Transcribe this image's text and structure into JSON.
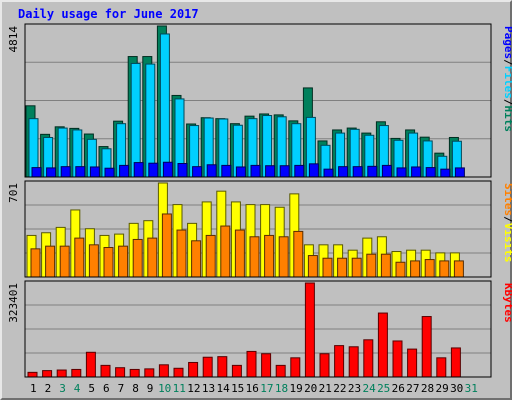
{
  "chart_data": {
    "type": "bar",
    "title": "Daily usage for June 2017",
    "categories": [
      "1",
      "2",
      "3",
      "4",
      "5",
      "6",
      "7",
      "8",
      "9",
      "10",
      "11",
      "12",
      "13",
      "14",
      "15",
      "16",
      "17",
      "18",
      "19",
      "20",
      "21",
      "22",
      "23",
      "24",
      "25",
      "26",
      "27",
      "28",
      "29",
      "30",
      "31"
    ],
    "weekend_days": [
      "3",
      "4",
      "10",
      "11",
      "17",
      "18",
      "24",
      "25",
      "31"
    ],
    "panels": [
      {
        "id": "hits-files-pages",
        "max_label": "4814",
        "ymax": 4814,
        "side_labels": [
          "Pages",
          "/",
          "Files",
          "/",
          "Hits"
        ],
        "series": [
          {
            "name": "Hits",
            "color": "#00805c",
            "values": [
              2270,
              1360,
              1600,
              1550,
              1370,
              970,
              1780,
              3840,
              3840,
              4814,
              2600,
              1690,
              1890,
              1860,
              1700,
              1940,
              2010,
              1980,
              1790,
              2840,
              1150,
              1500,
              1560,
              1400,
              1760,
              1230,
              1500,
              1270,
              760,
              1260
            ]
          },
          {
            "name": "Files",
            "color": "#00d0ff",
            "values": [
              1860,
              1260,
              1560,
              1500,
              1200,
              900,
              1700,
              3620,
              3600,
              4560,
              2490,
              1640,
              1880,
              1850,
              1650,
              1860,
              1960,
              1920,
              1700,
              1900,
              1010,
              1400,
              1520,
              1330,
              1640,
              1170,
              1400,
              1150,
              660,
              1140
            ]
          },
          {
            "name": "Pages",
            "color": "#0000ff",
            "values": [
              300,
              290,
              330,
              330,
              320,
              280,
              370,
              460,
              440,
              470,
              430,
              330,
              390,
              370,
              320,
              370,
              360,
              360,
              370,
              420,
              250,
              330,
              330,
              340,
              370,
              290,
              320,
              300,
              250,
              290
            ]
          }
        ]
      },
      {
        "id": "visits-sites",
        "max_label": "701",
        "ymax": 701,
        "side_labels": [
          "Sites",
          "/",
          "Visits"
        ],
        "series": [
          {
            "name": "Visits",
            "color": "#ffff00",
            "values": [
              310,
              330,
              370,
              500,
              360,
              310,
              320,
              400,
              420,
              701,
              540,
              400,
              560,
              640,
              560,
              540,
              540,
              520,
              620,
              240,
              240,
              240,
              200,
              290,
              300,
              190,
              200,
              200,
              180,
              180
            ]
          },
          {
            "name": "Sites",
            "color": "#ff8000",
            "values": [
              210,
              230,
              230,
              290,
              240,
              220,
              230,
              280,
              290,
              470,
              350,
              270,
              310,
              380,
              350,
              300,
              310,
              300,
              340,
              160,
              140,
              140,
              140,
              170,
              170,
              110,
              120,
              130,
              120,
              120
            ]
          }
        ]
      },
      {
        "id": "kbytes",
        "max_label": "323401",
        "ymax": 323401,
        "side_labels": [
          "KBytes"
        ],
        "series": [
          {
            "name": "KBytes",
            "color": "#ff0000",
            "values": [
              16000,
              22000,
              24000,
              26000,
              85000,
              40000,
              32000,
              26000,
              28000,
              42000,
              30000,
              50000,
              68000,
              70000,
              40000,
              88000,
              80000,
              40000,
              66000,
              323401,
              80000,
              108000,
              104000,
              128000,
              220000,
              124000,
              96000,
              208000,
              66000,
              100000
            ]
          }
        ]
      }
    ]
  }
}
